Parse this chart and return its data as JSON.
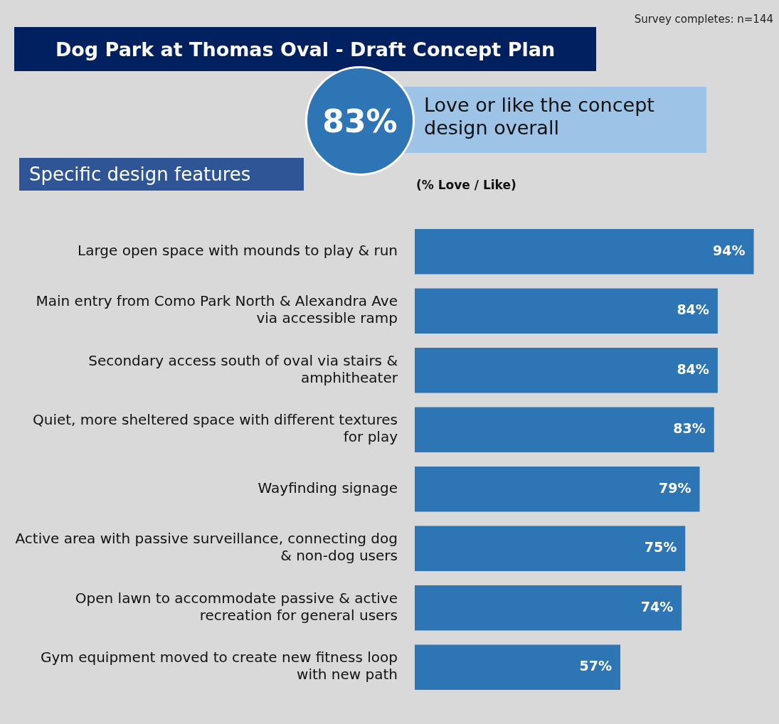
{
  "chart_data": {
    "type": "bar",
    "orientation": "horizontal",
    "title": "Dog Park at Thomas Oval - Draft Concept Plan",
    "xlabel": "(% Love / Like)",
    "annotations": [
      "Survey completes: n=144",
      "83%",
      "Love or like the concept design overall",
      "Specific design features"
    ],
    "categories": [
      "Large open space with mounds to play & run",
      "Main entry from Como Park North & Alexandra Ave via accessible ramp",
      "Secondary access south of oval via stairs & amphitheater",
      "Quiet, more sheltered space with different textures for play",
      "Wayfinding signage",
      "Active area with passive surveillance, connecting dog & non-dog users",
      "Open lawn to accommodate passive & active recreation for general users",
      "Gym equipment moved to create new fitness loop with new path"
    ],
    "values": [
      94,
      84,
      84,
      83,
      79,
      75,
      74,
      57
    ],
    "value_labels": [
      "94%",
      "84%",
      "84%",
      "83%",
      "79%",
      "75%",
      "74%",
      "57%"
    ],
    "color": "#2e75b6"
  }
}
